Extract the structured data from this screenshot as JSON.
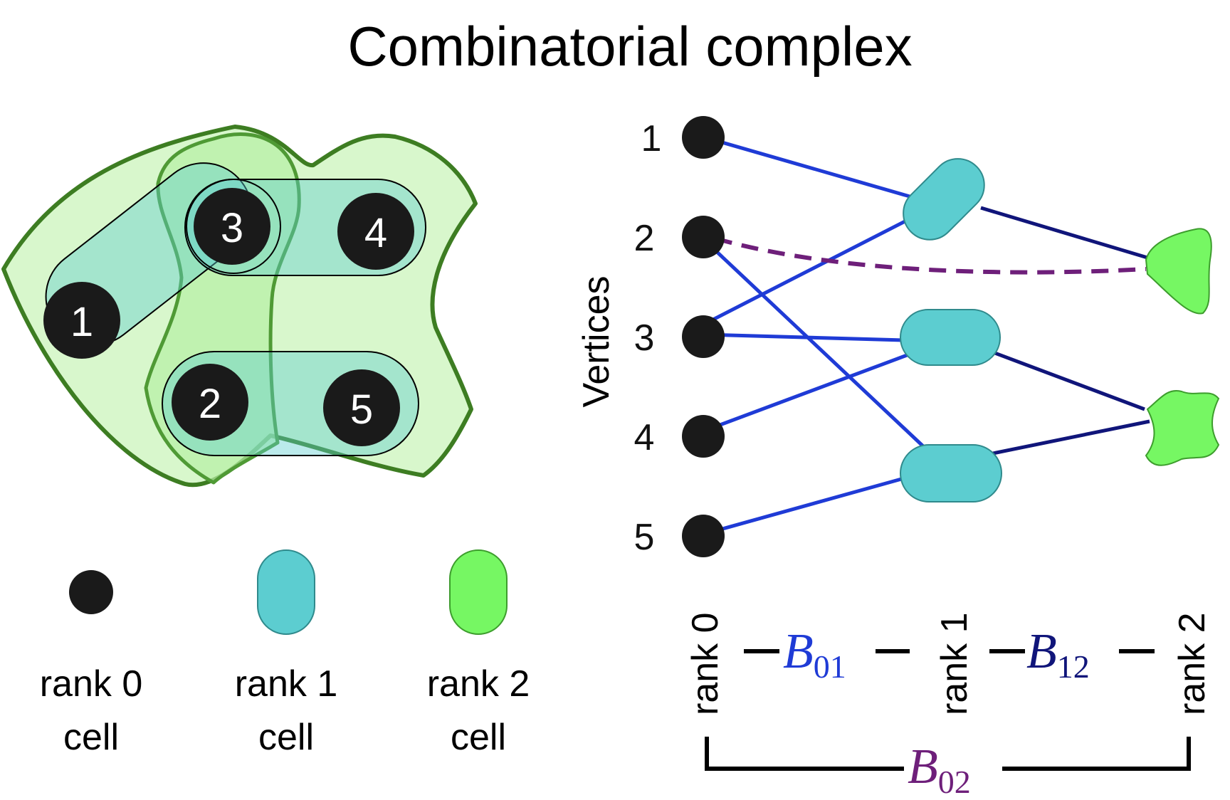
{
  "title": "Combinatorial complex",
  "diagram": {
    "vertex_labels": [
      "1",
      "2",
      "3",
      "4",
      "5"
    ],
    "axis_label": "Vertices",
    "rank_labels": [
      "rank 0",
      "rank 1",
      "rank 2"
    ],
    "matrices": [
      {
        "symbol": "B",
        "subscript": "01",
        "color": "#1f3bd6"
      },
      {
        "symbol": "B",
        "subscript": "12",
        "color": "#10157a"
      },
      {
        "symbol": "B",
        "subscript": "02",
        "color": "#6e1f7a"
      }
    ]
  },
  "legend": [
    {
      "line1": "rank 0",
      "line2": "cell",
      "color": "#1a1a1a"
    },
    {
      "line1": "rank 1",
      "line2": "cell",
      "color": "#5ccdd0"
    },
    {
      "line1": "rank 2",
      "line2": "cell",
      "color": "#76f763"
    }
  ],
  "colors": {
    "rank0": "#1a1a1a",
    "rank1": "#5ccdd0",
    "rank2": "#76f763",
    "rank2_outline": "#3d7d22",
    "b01": "#1f3bd6",
    "b12": "#10157a",
    "b02": "#6e1f7a"
  }
}
